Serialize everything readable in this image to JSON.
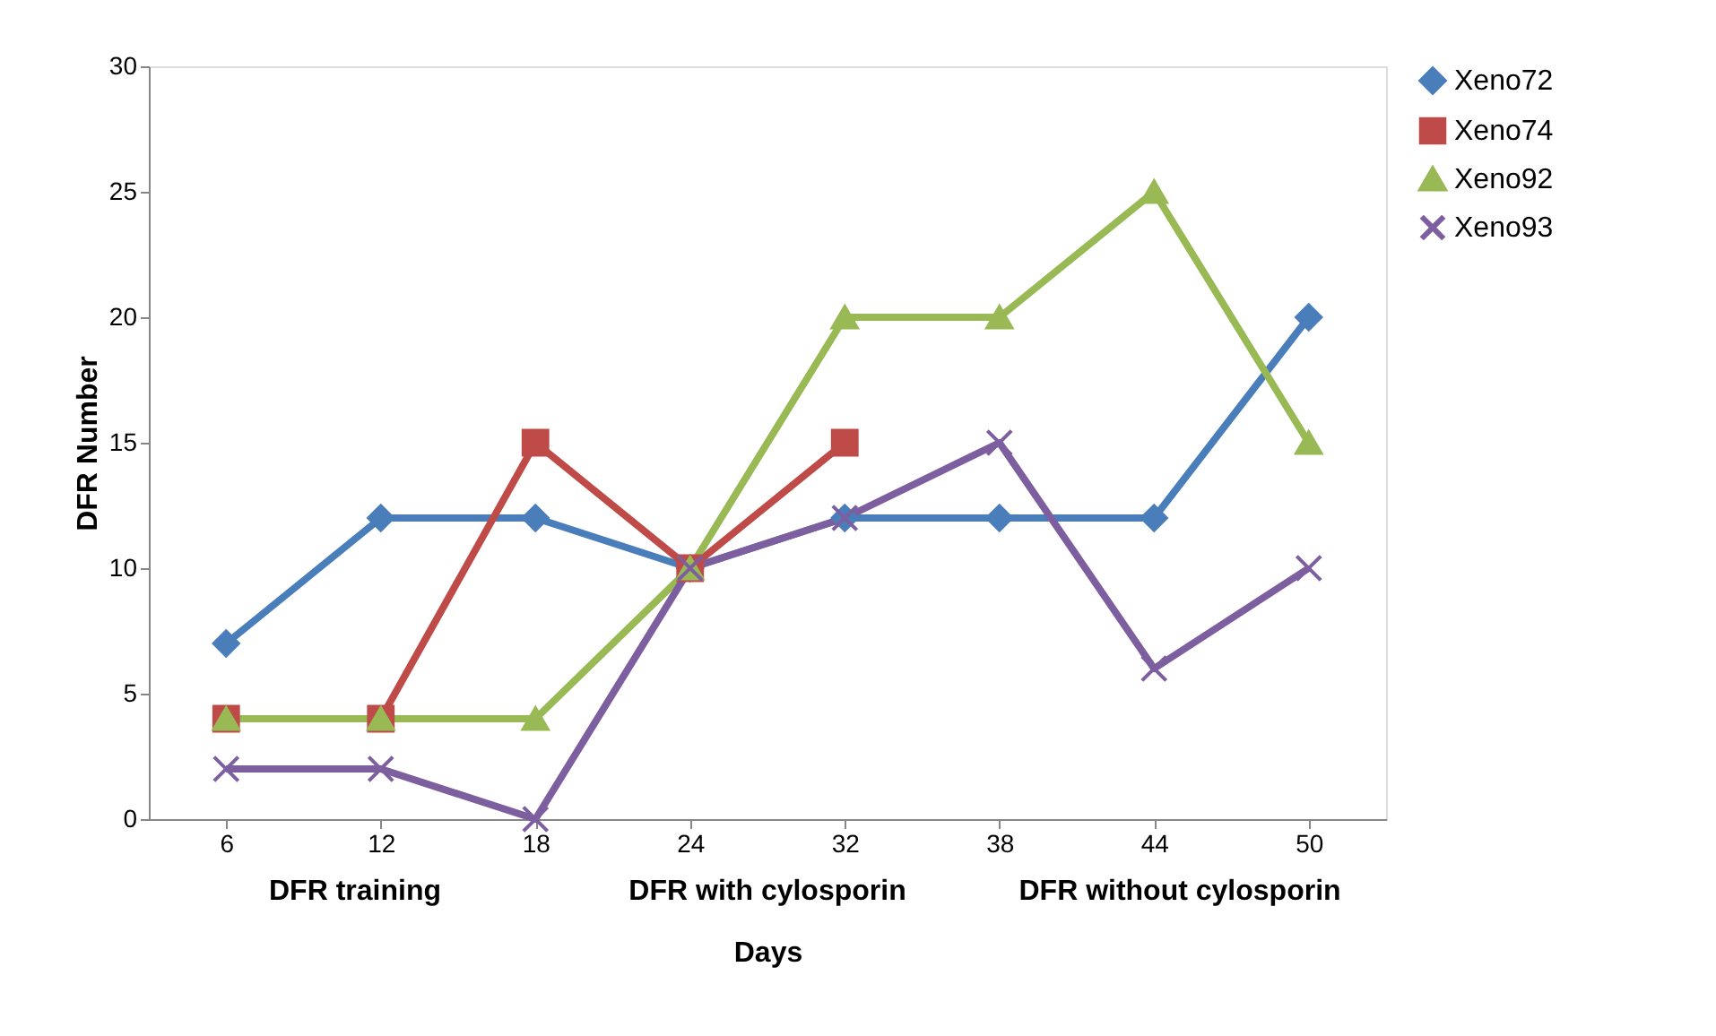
{
  "chart_data": {
    "type": "line",
    "xlabel": "Days",
    "ylabel": "DFR Number",
    "categories": [
      "6",
      "12",
      "18",
      "24",
      "32",
      "38",
      "44",
      "50"
    ],
    "ylim": [
      0,
      30
    ],
    "yticks": [
      0,
      5,
      10,
      15,
      20,
      25,
      30
    ],
    "grid": false,
    "legend": "right",
    "annotations": [
      "DFR training",
      "DFR with cylosporin",
      "DFR without cylosporin"
    ],
    "series": [
      {
        "name": "Xeno72",
        "color": "#4a7ebb",
        "marker": "diamond",
        "values": [
          7,
          12,
          12,
          10,
          12,
          12,
          12,
          20
        ]
      },
      {
        "name": "Xeno74",
        "color": "#be4b48",
        "marker": "square",
        "values": [
          4,
          4,
          15,
          10,
          15,
          null,
          null,
          null
        ]
      },
      {
        "name": "Xeno92",
        "color": "#98b954",
        "marker": "triangle",
        "values": [
          4,
          4,
          4,
          10,
          20,
          20,
          25,
          15
        ]
      },
      {
        "name": "Xeno93",
        "color": "#7d5fa0",
        "marker": "cross",
        "values": [
          2,
          2,
          0,
          10,
          12,
          15,
          6,
          10
        ]
      }
    ]
  }
}
